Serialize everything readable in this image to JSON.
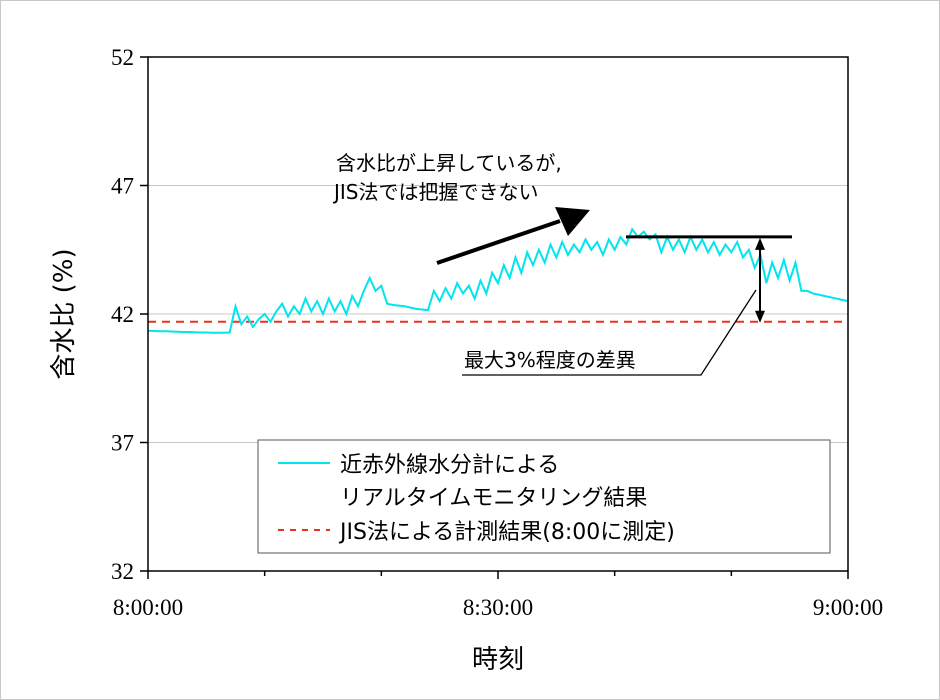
{
  "chart_data": {
    "type": "line",
    "xlabel": "時刻",
    "ylabel": "含水比 (%)",
    "xlim": [
      "8:00:00",
      "9:00:00"
    ],
    "ylim": [
      32,
      52
    ],
    "x_ticks": [
      "8:00:00",
      "8:30:00",
      "9:00:00"
    ],
    "y_ticks": [
      "32",
      "37",
      "42",
      "47",
      "52"
    ],
    "grid": "horizontal",
    "legend_placement": "bottom",
    "series": [
      {
        "name": "近赤外線水分計による\nリアルタイムモニタリング結果",
        "name_lines": [
          "近赤外線水分計による",
          "リアルタイムモニタリング結果"
        ],
        "color": "#00e5ee",
        "style": "solid",
        "x_minutes_after_8": [
          0,
          0.5,
          1,
          1.5,
          2,
          2.5,
          3,
          3.5,
          4,
          4.5,
          5,
          5.5,
          6,
          6.5,
          7,
          7.5,
          8,
          8.5,
          9,
          9.5,
          10,
          10.5,
          11,
          11.5,
          12,
          12.5,
          13,
          13.5,
          14,
          14.5,
          15,
          15.5,
          16,
          16.5,
          17,
          17.5,
          18,
          18.5,
          19,
          19.5,
          20,
          20.5,
          21,
          22,
          23,
          24,
          24.5,
          25,
          25.5,
          26,
          26.5,
          27,
          27.5,
          28,
          28.5,
          29,
          29.5,
          30,
          30.5,
          31,
          31.5,
          32,
          32.5,
          33,
          33.5,
          34,
          34.5,
          35,
          35.5,
          36,
          36.5,
          37,
          37.5,
          38,
          38.5,
          39,
          39.5,
          40,
          40.5,
          41,
          41.5,
          42,
          42.5,
          43,
          43.5,
          44,
          44.5,
          45,
          45.5,
          46,
          46.5,
          47,
          47.5,
          48,
          48.5,
          49,
          49.5,
          50,
          50.5,
          51,
          51.5,
          52,
          52.5,
          53,
          53.5,
          54,
          54.5,
          55,
          55.5,
          56,
          56.5,
          57,
          58,
          59,
          60
        ],
        "y": [
          41.35,
          41.34,
          41.33,
          41.33,
          41.32,
          41.31,
          41.3,
          41.3,
          41.29,
          41.28,
          41.28,
          41.27,
          41.27,
          41.27,
          41.28,
          42.3,
          41.6,
          41.9,
          41.5,
          41.8,
          42.0,
          41.7,
          42.1,
          42.4,
          41.9,
          42.3,
          42.0,
          42.6,
          42.1,
          42.5,
          42.0,
          42.6,
          42.1,
          42.5,
          42.0,
          42.7,
          42.3,
          42.9,
          43.4,
          42.9,
          43.1,
          42.4,
          42.35,
          42.3,
          42.2,
          42.15,
          42.9,
          42.5,
          43.0,
          42.6,
          43.2,
          42.8,
          43.1,
          42.6,
          43.3,
          42.8,
          43.6,
          43.2,
          43.9,
          43.4,
          44.2,
          43.6,
          44.4,
          43.9,
          44.5,
          44.0,
          44.7,
          44.2,
          44.8,
          44.3,
          44.7,
          44.4,
          44.9,
          44.5,
          44.8,
          44.3,
          44.9,
          44.5,
          45.0,
          44.7,
          45.3,
          45.0,
          45.2,
          44.9,
          45.1,
          44.4,
          45.0,
          44.5,
          44.9,
          44.4,
          45.0,
          44.5,
          44.9,
          44.4,
          44.8,
          44.3,
          44.7,
          44.4,
          44.8,
          44.2,
          44.5,
          43.8,
          44.3,
          43.2,
          44.0,
          43.4,
          44.1,
          43.3,
          44.0,
          42.9,
          42.9,
          42.8,
          42.7,
          42.6,
          42.5
        ]
      },
      {
        "name": "JIS法による計測結果(8:00に測定)",
        "color": "#e8321e",
        "style": "dashed",
        "value": 41.7
      }
    ],
    "annotations": {
      "rise_note": [
        "含水比が上昇しているが,",
        "JIS法では把握できない"
      ],
      "difference_note": "最大3%程度の差異",
      "peak_level": 45.0
    }
  }
}
